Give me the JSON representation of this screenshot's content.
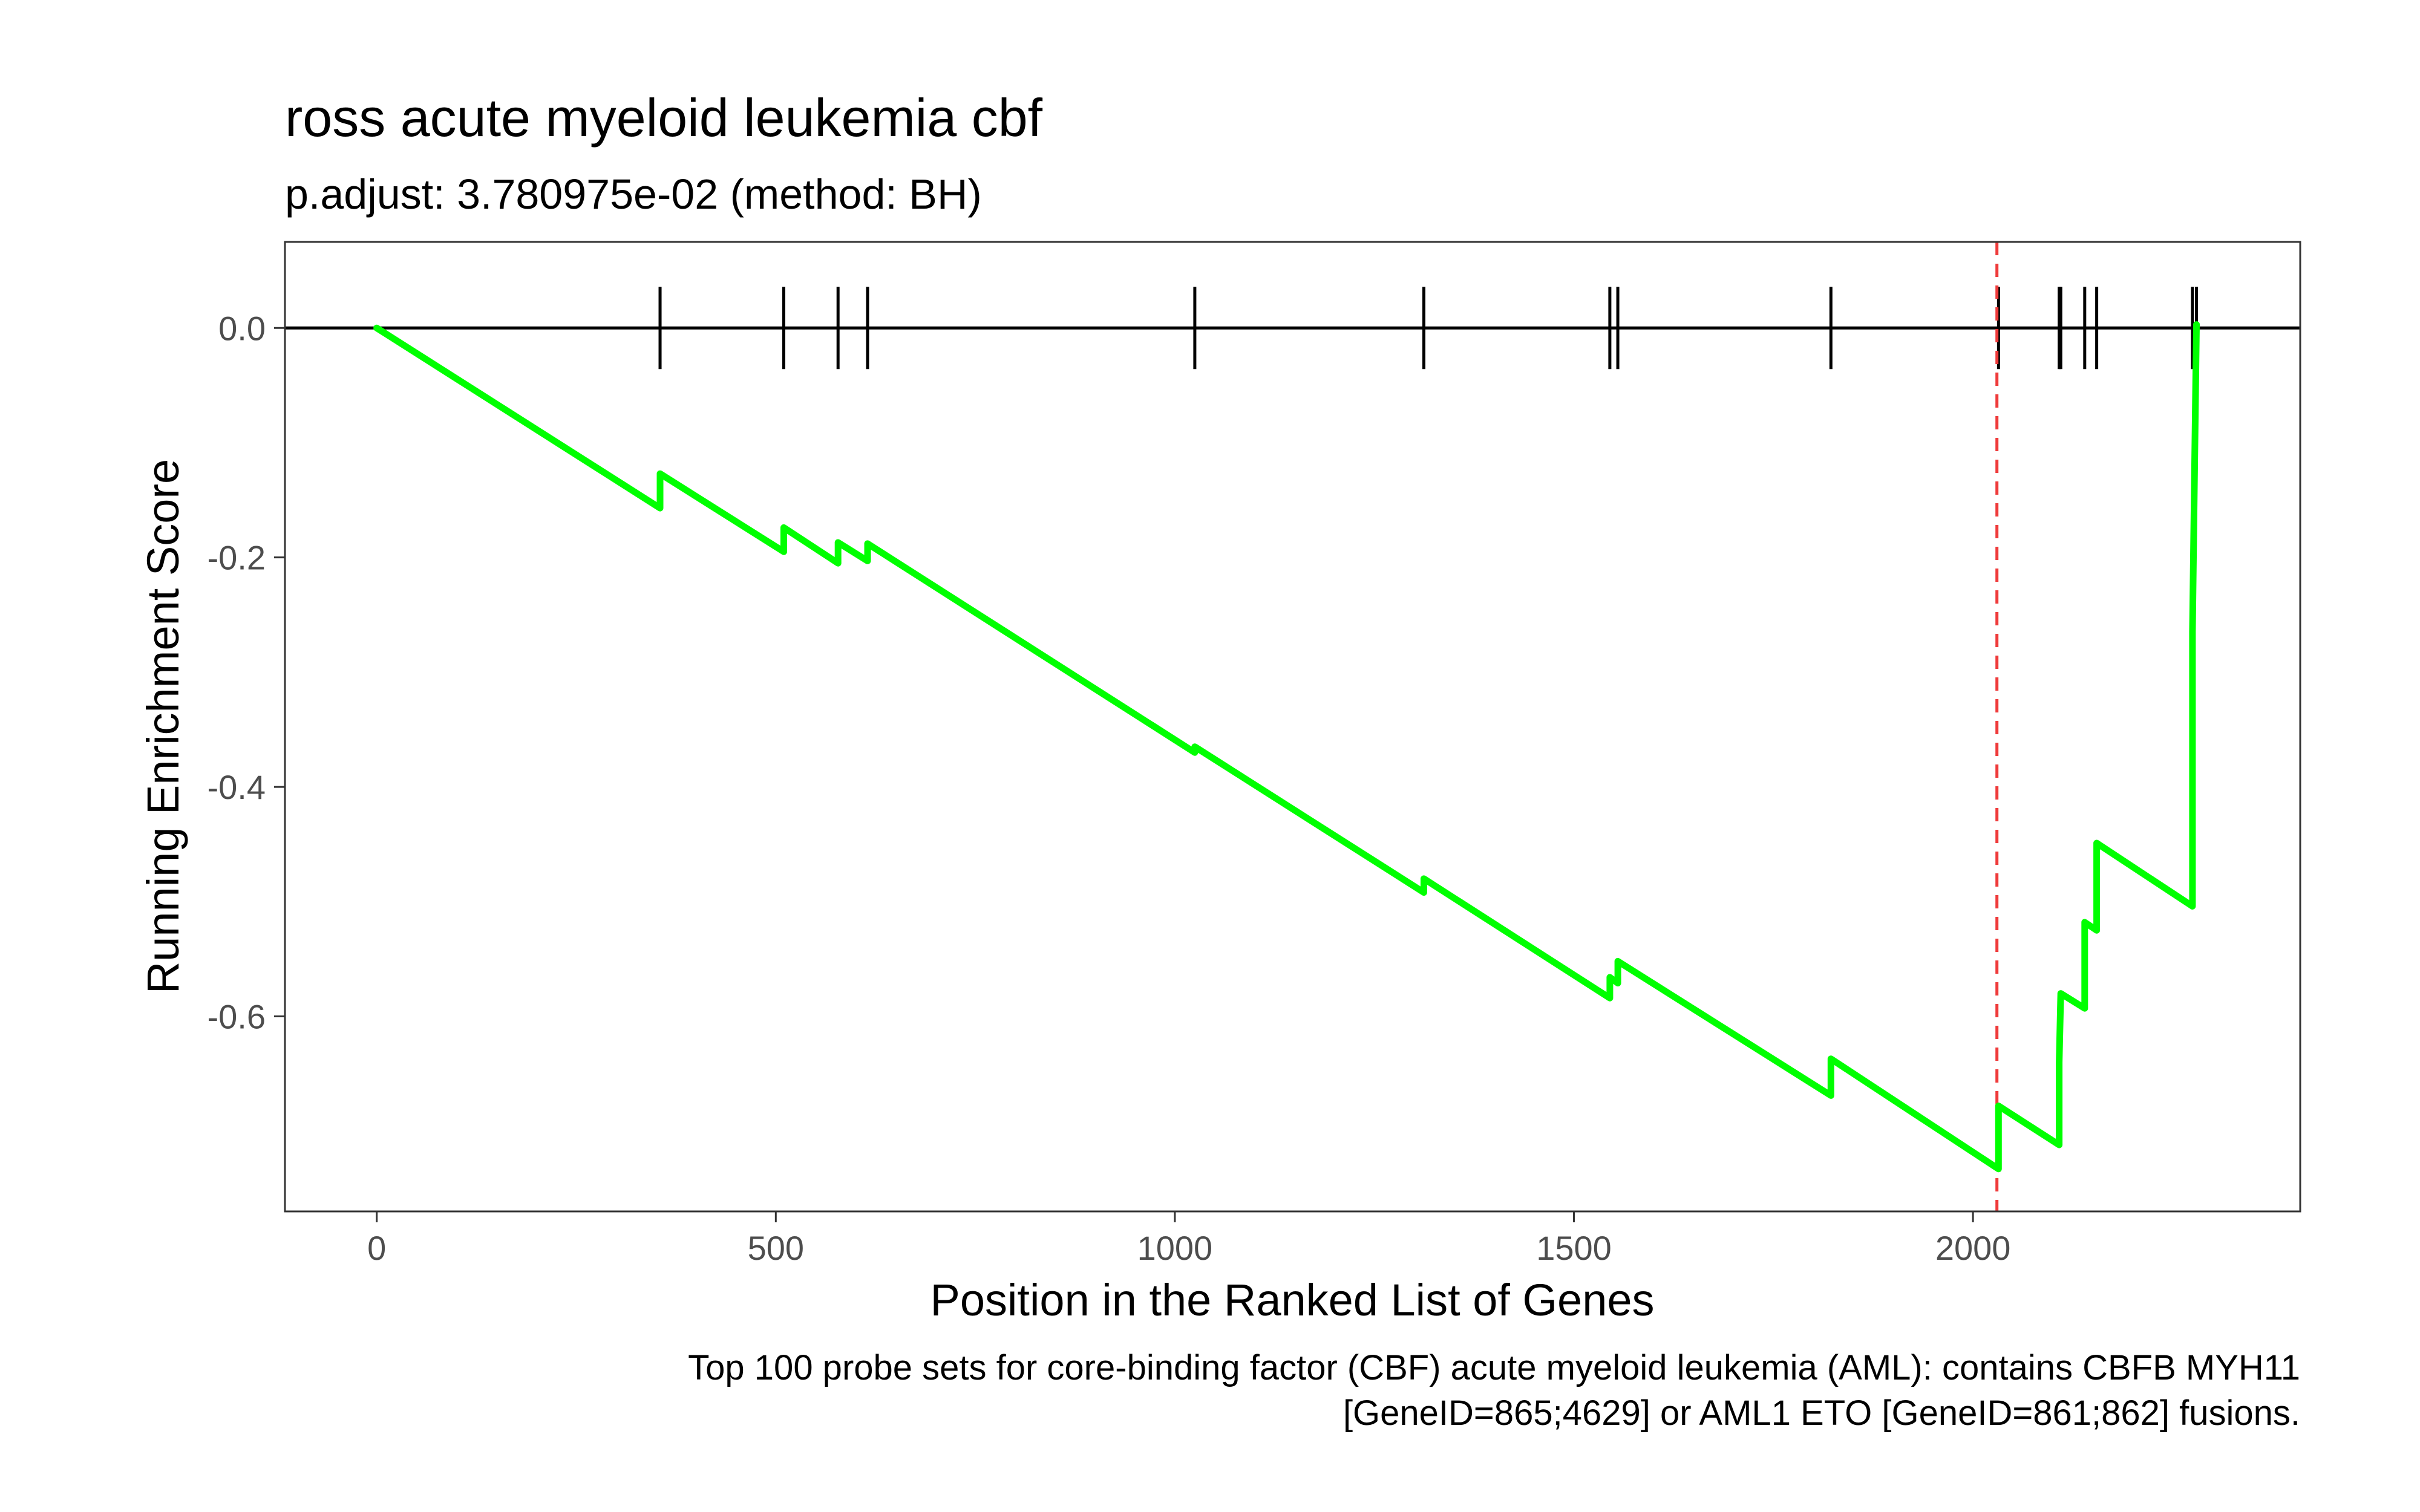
{
  "chart_data": {
    "type": "line",
    "title": "ross acute myeloid leukemia cbf",
    "subtitle": "p.adjust: 3.780975e-02 (method: BH)",
    "xlabel": "Position in the Ranked List of Genes",
    "ylabel": "Running Enrichment Score",
    "caption": [
      "Top 100 probe sets for core-binding factor (CBF) acute myeloid leukemia (AML): contains CBFB MYH11",
      "[GeneID=865;4629] or AML1 ETO [GeneID=861;862] fusions."
    ],
    "xlim": [
      -115,
      2410
    ],
    "ylim": [
      -0.77,
      0.075
    ],
    "x_ticks": [
      0,
      500,
      1000,
      1500,
      2000
    ],
    "x_tick_labels": [
      "0",
      "500",
      "1000",
      "1500",
      "2000"
    ],
    "y_ticks": [
      0.0,
      -0.2,
      -0.4,
      -0.6
    ],
    "y_tick_labels": [
      "0.0",
      "-0.2",
      "-0.4",
      "-0.6"
    ],
    "grid": false,
    "line_color": "#00ff00",
    "zero_line_color": "#000000",
    "peak_line_color": "#ef3b3b",
    "peak_position": 2030,
    "hits": [
      355,
      510,
      578,
      615,
      1025,
      1312,
      1545,
      1555,
      1822,
      2032,
      2108,
      2110,
      2140,
      2155,
      2275,
      2280
    ],
    "series": [
      {
        "values": [
          [
            0,
            0.0
          ],
          [
            355,
            -0.157
          ],
          [
            355,
            -0.127
          ],
          [
            510,
            -0.195
          ],
          [
            510,
            -0.174
          ],
          [
            510,
            -0.174
          ],
          [
            578,
            -0.205
          ],
          [
            578,
            -0.187
          ],
          [
            615,
            -0.203
          ],
          [
            615,
            -0.188
          ],
          [
            1025,
            -0.37
          ],
          [
            1025,
            -0.365
          ],
          [
            1312,
            -0.492
          ],
          [
            1312,
            -0.48
          ],
          [
            1545,
            -0.584
          ],
          [
            1545,
            -0.566
          ],
          [
            1555,
            -0.571
          ],
          [
            1555,
            -0.552
          ],
          [
            1822,
            -0.669
          ],
          [
            1822,
            -0.637
          ],
          [
            2032,
            -0.733
          ],
          [
            2032,
            -0.678
          ],
          [
            2108,
            -0.712
          ],
          [
            2108,
            -0.64
          ],
          [
            2110,
            -0.58
          ],
          [
            2140,
            -0.593
          ],
          [
            2140,
            -0.518
          ],
          [
            2155,
            -0.525
          ],
          [
            2155,
            -0.449
          ],
          [
            2275,
            -0.504
          ],
          [
            2275,
            -0.265
          ],
          [
            2280,
            0.003
          ]
        ]
      }
    ]
  }
}
